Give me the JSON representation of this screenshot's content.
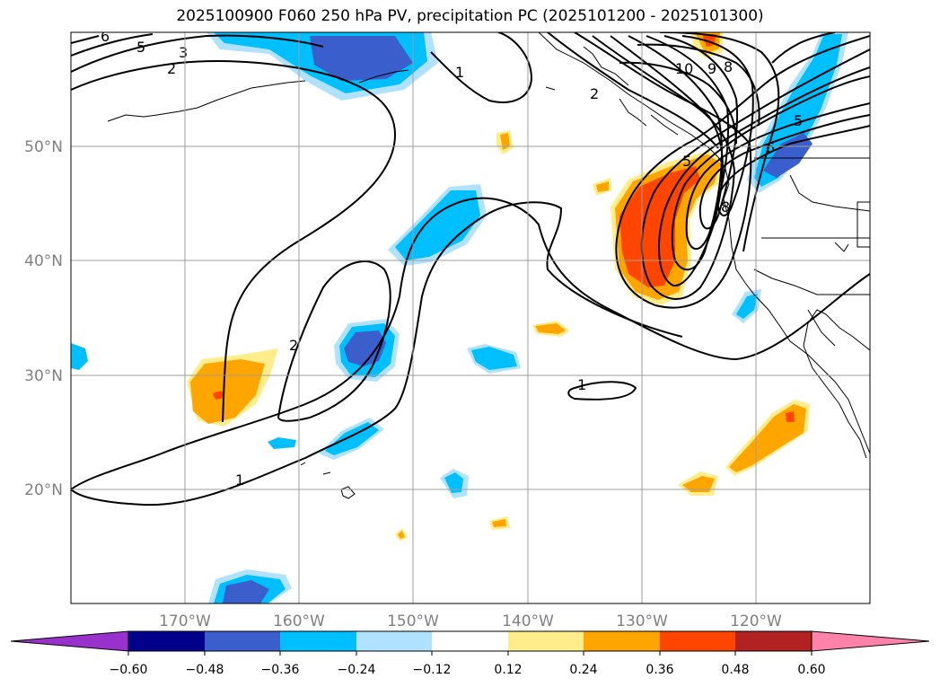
{
  "title": "2025100900 F060 250 hPa PV, precipitation PC (2025101200 - 2025101300)",
  "lat_labels": [
    "50°N",
    "40°N",
    "30°N",
    "20°N"
  ],
  "lon_labels": [
    "170°W",
    "160°W",
    "150°W",
    "140°W",
    "130°W",
    "120°W"
  ],
  "contour_labels": [
    "6",
    "5",
    "3",
    "2",
    "1",
    "10",
    "9",
    "8",
    "2",
    "5",
    "6",
    "5",
    "8",
    "2",
    "1",
    "1"
  ],
  "colorbar": {
    "ticks": [
      "−0.60",
      "−0.48",
      "−0.36",
      "−0.24",
      "−0.12",
      "0.12",
      "0.24",
      "0.36",
      "0.48",
      "0.60"
    ],
    "colors": [
      "#9932cc",
      "#00008b",
      "#3a5fcd",
      "#00bfff",
      "#b0e2ff",
      "#ffffff",
      "#ffec8b",
      "#ffa500",
      "#ff4500",
      "#b22222",
      "#ff82ab"
    ]
  },
  "colors": {
    "neg_light": "#b0e2ff",
    "neg_mid": "#00bfff",
    "neg_dark": "#3a5fcd",
    "pos_light": "#ffec8b",
    "pos_mid": "#ffa500",
    "pos_dark": "#ff4500"
  }
}
